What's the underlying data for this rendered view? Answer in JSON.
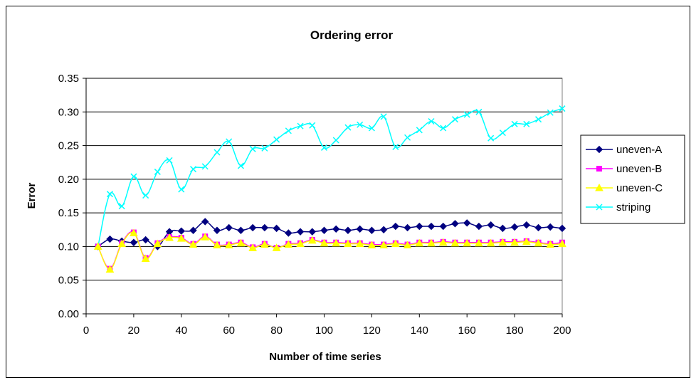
{
  "chart_data": {
    "type": "line",
    "title": "Ordering error",
    "xlabel": "Number of time series",
    "ylabel": "Error",
    "xlim": [
      0,
      200
    ],
    "ylim": [
      0,
      0.35
    ],
    "x_ticks": [
      "0",
      "20",
      "40",
      "60",
      "80",
      "100",
      "120",
      "140",
      "160",
      "180",
      "200"
    ],
    "y_ticks": [
      "0.00",
      "0.05",
      "0.10",
      "0.15",
      "0.20",
      "0.25",
      "0.30",
      "0.35"
    ],
    "grid": "horizontal",
    "legend_position": "right",
    "x": [
      5,
      10,
      15,
      20,
      25,
      30,
      35,
      40,
      45,
      50,
      55,
      60,
      65,
      70,
      75,
      80,
      85,
      90,
      95,
      100,
      105,
      110,
      115,
      120,
      125,
      130,
      135,
      140,
      145,
      150,
      155,
      160,
      165,
      170,
      175,
      180,
      185,
      190,
      195,
      200
    ],
    "series": [
      {
        "name": "uneven-A",
        "color": "#000080",
        "marker": "diamond",
        "values": [
          0.1,
          0.111,
          0.108,
          0.106,
          0.11,
          0.1,
          0.122,
          0.123,
          0.124,
          0.137,
          0.124,
          0.128,
          0.124,
          0.128,
          0.128,
          0.127,
          0.12,
          0.122,
          0.122,
          0.124,
          0.126,
          0.124,
          0.126,
          0.124,
          0.125,
          0.13,
          0.128,
          0.13,
          0.13,
          0.13,
          0.134,
          0.135,
          0.13,
          0.132,
          0.127,
          0.129,
          0.132,
          0.128,
          0.129,
          0.127
        ]
      },
      {
        "name": "uneven-B",
        "color": "#FF00FF",
        "marker": "square",
        "values": [
          0.1,
          0.067,
          0.105,
          0.121,
          0.083,
          0.105,
          0.114,
          0.113,
          0.104,
          0.115,
          0.103,
          0.103,
          0.106,
          0.099,
          0.104,
          0.098,
          0.104,
          0.105,
          0.11,
          0.106,
          0.106,
          0.105,
          0.105,
          0.103,
          0.103,
          0.105,
          0.103,
          0.106,
          0.106,
          0.107,
          0.106,
          0.106,
          0.106,
          0.106,
          0.107,
          0.107,
          0.108,
          0.106,
          0.104,
          0.106
        ]
      },
      {
        "name": "uneven-C",
        "color": "#FFFF00",
        "marker": "triangle",
        "values": [
          0.1,
          0.066,
          0.104,
          0.12,
          0.082,
          0.104,
          0.113,
          0.112,
          0.103,
          0.114,
          0.102,
          0.102,
          0.105,
          0.098,
          0.103,
          0.098,
          0.103,
          0.104,
          0.109,
          0.105,
          0.105,
          0.104,
          0.104,
          0.102,
          0.102,
          0.104,
          0.102,
          0.105,
          0.105,
          0.106,
          0.105,
          0.105,
          0.105,
          0.105,
          0.106,
          0.106,
          0.107,
          0.105,
          0.103,
          0.104
        ]
      },
      {
        "name": "striping",
        "color": "#00FFFF",
        "marker": "x",
        "values": [
          0.1,
          0.178,
          0.16,
          0.204,
          0.176,
          0.211,
          0.228,
          0.185,
          0.215,
          0.219,
          0.24,
          0.256,
          0.22,
          0.245,
          0.246,
          0.259,
          0.272,
          0.279,
          0.28,
          0.247,
          0.258,
          0.277,
          0.281,
          0.276,
          0.293,
          0.248,
          0.262,
          0.273,
          0.286,
          0.276,
          0.289,
          0.296,
          0.3,
          0.261,
          0.269,
          0.282,
          0.282,
          0.289,
          0.299,
          0.305
        ]
      }
    ]
  }
}
